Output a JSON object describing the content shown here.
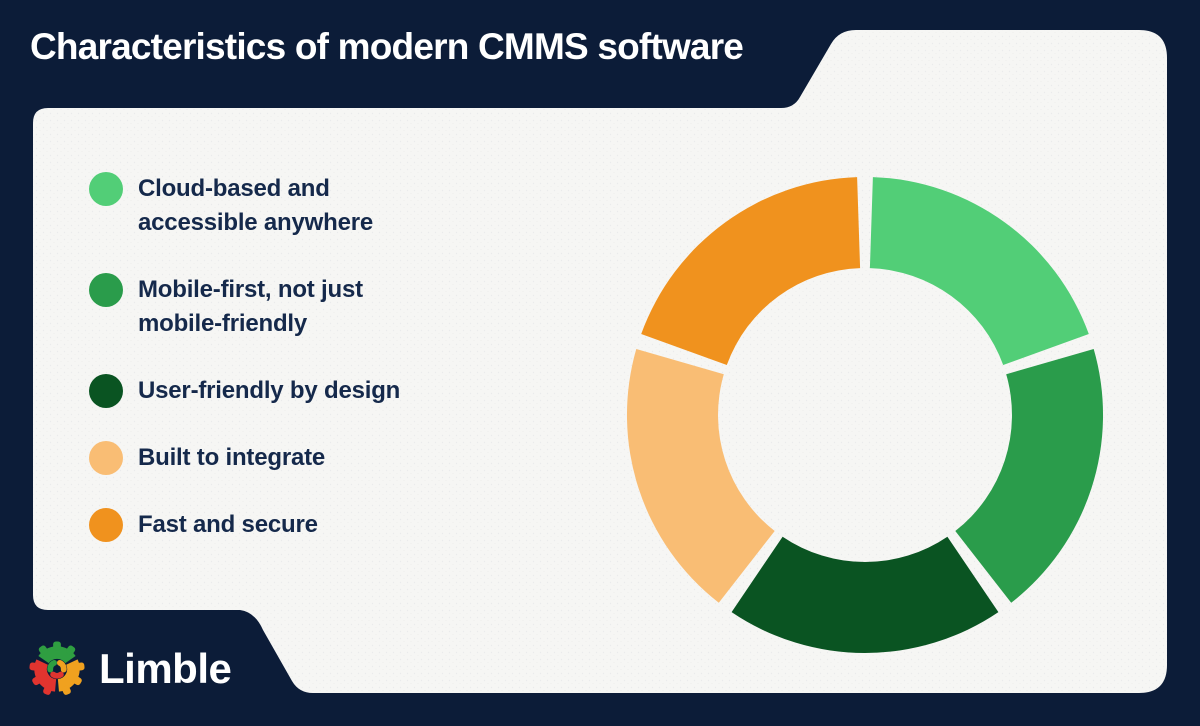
{
  "header": {
    "title": "Characteristics of modern CMMS software"
  },
  "palette": {
    "background_navy": "#0C1C38",
    "card_white": "#F6F6F4",
    "text_navy": "#15294B",
    "title_white": "#FFFFFF"
  },
  "legend": {
    "items": [
      {
        "label": "Cloud-based and\naccessible anywhere",
        "color": "#52CE77"
      },
      {
        "label": "Mobile-first, not just\nmobile-friendly",
        "color": "#2A9C4B"
      },
      {
        "label": "User-friendly by design",
        "color": "#0A5422"
      },
      {
        "label": "Built to integrate",
        "color": "#F9BD74"
      },
      {
        "label": "Fast and secure",
        "color": "#F0921E"
      }
    ]
  },
  "chart_data": {
    "type": "pie",
    "donut": true,
    "title": "Characteristics of modern CMMS software",
    "categories": [
      "Cloud-based and accessible anywhere",
      "Mobile-first, not just mobile-friendly",
      "User-friendly by design",
      "Built to integrate",
      "Fast and secure"
    ],
    "values": [
      20,
      20,
      20,
      20,
      20
    ],
    "colors": [
      "#52CE77",
      "#2A9C4B",
      "#0A5422",
      "#F9BD74",
      "#F0921E"
    ],
    "start_angle_deg": 0,
    "direction": "clockwise",
    "legend_position": "left",
    "data_labels": "none"
  },
  "logo": {
    "text": "Limble",
    "gear_colors": {
      "green": "#2F9E41",
      "red": "#E1342F",
      "orange": "#F0A11F"
    }
  }
}
